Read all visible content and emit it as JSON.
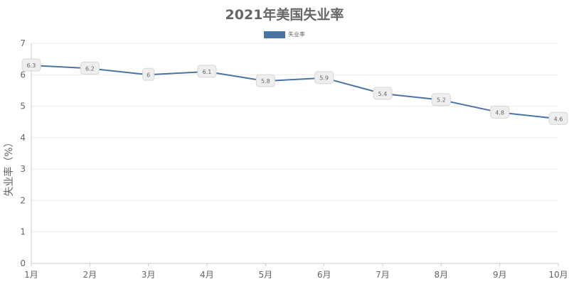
{
  "chart_data": {
    "type": "line",
    "title": "2021年美国失业率",
    "xlabel": "",
    "ylabel": "失业率（%）",
    "categories": [
      "1月",
      "2月",
      "3月",
      "4月",
      "5月",
      "6月",
      "7月",
      "8月",
      "9月",
      "10月"
    ],
    "series": [
      {
        "name": "失业率",
        "values": [
          6.3,
          6.2,
          6,
          6.1,
          5.8,
          5.9,
          5.4,
          5.2,
          4.8,
          4.6
        ],
        "color": "#4a74a4"
      }
    ],
    "ylim": [
      0,
      7
    ],
    "yticks": [
      "0",
      "1",
      "2",
      "3",
      "4",
      "5",
      "6",
      "7"
    ],
    "grid": true,
    "legend_position": "top-center",
    "data_labels": true
  }
}
